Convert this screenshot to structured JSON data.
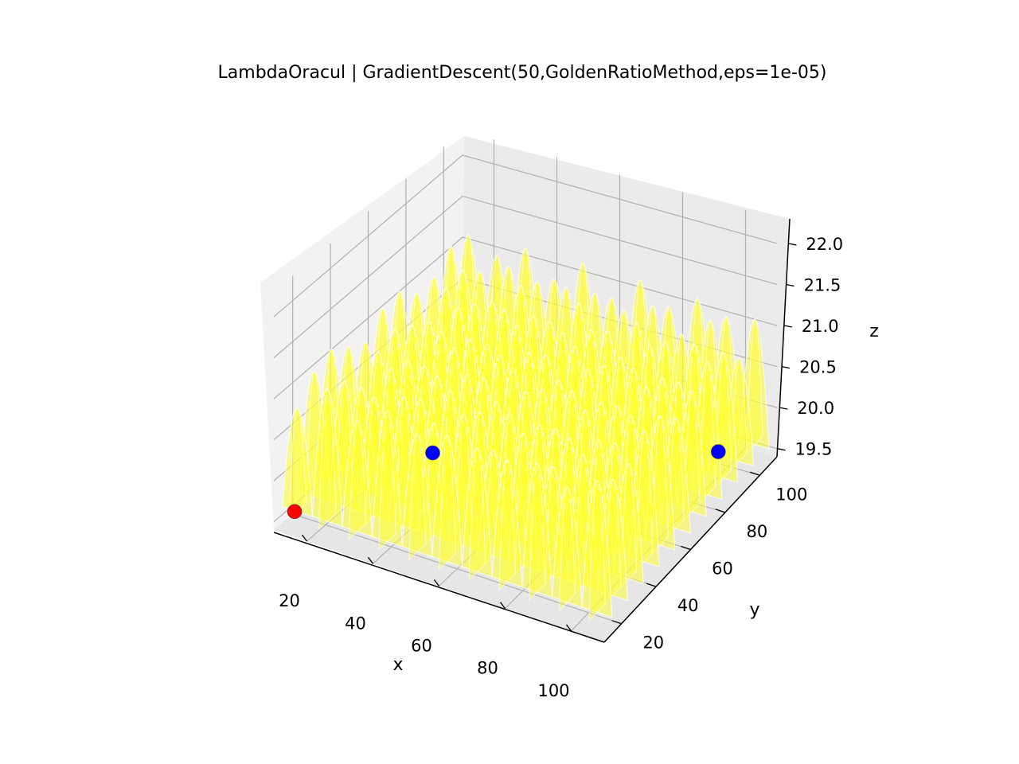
{
  "chart_data": {
    "type": "surface3d",
    "title": "LambdaOracul | GradientDescent(50,GoldenRatioMethod,eps=1e-05)",
    "xlabel": "x",
    "ylabel": "y",
    "zlabel": "z",
    "x_ticks": [
      "20",
      "40",
      "60",
      "80",
      "100"
    ],
    "y_ticks": [
      "20",
      "40",
      "60",
      "80",
      "100"
    ],
    "z_ticks": [
      "19.5",
      "20.0",
      "20.5",
      "21.0",
      "21.5",
      "22.0"
    ],
    "xlim": [
      10,
      110
    ],
    "ylim": [
      10,
      110
    ],
    "zlim": [
      19.4,
      22.3
    ],
    "surface": {
      "color": "#ffff33",
      "highlight_color": "#ffffff",
      "x_range": [
        10,
        110
      ],
      "y_range": [
        10,
        110
      ],
      "z_range": [
        19.6,
        22.2
      ],
      "description_grid": "oscillating surface, ~11 x 11 peaks"
    },
    "points": [
      {
        "x": 14,
        "y": 14,
        "z": 19.6,
        "color": "#ff0000"
      },
      {
        "x": 30,
        "y": 60,
        "z": 19.6,
        "color": "#0000ff"
      },
      {
        "x": 98,
        "y": 98,
        "z": 19.6,
        "color": "#0000ff"
      }
    ],
    "grid": true
  }
}
